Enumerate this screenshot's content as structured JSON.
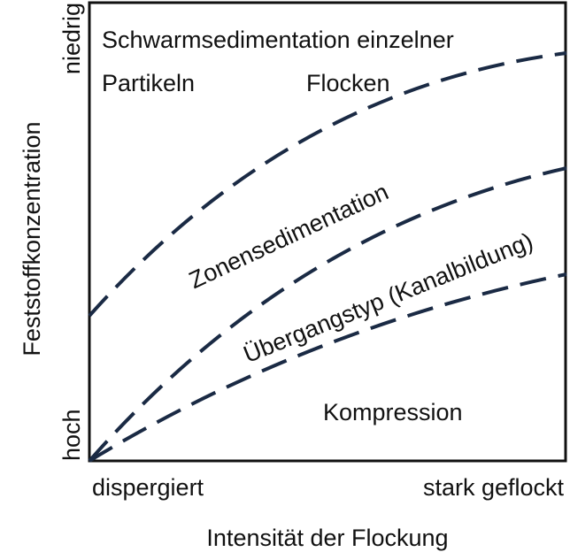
{
  "axes": {
    "y_label": "Feststoffkonzentration",
    "y_top": "niedrig",
    "y_bottom": "hoch",
    "x_label": "Intensität der Flockung",
    "x_left": "dispergiert",
    "x_right": "stark geflockt"
  },
  "regions": {
    "top_line1": "Schwarmsedimentation einzelner",
    "top_left": "Partikeln",
    "top_right": "Flocken",
    "zone": "Zonensedimentation",
    "transition": "Übergangstyp (Kanalbildung)",
    "compression": "Kompression"
  }
}
